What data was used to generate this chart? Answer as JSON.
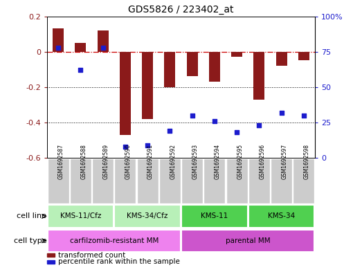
{
  "title": "GDS5826 / 223402_at",
  "samples": [
    "GSM1692587",
    "GSM1692588",
    "GSM1692589",
    "GSM1692590",
    "GSM1692591",
    "GSM1692592",
    "GSM1692593",
    "GSM1692594",
    "GSM1692595",
    "GSM1692596",
    "GSM1692597",
    "GSM1692598"
  ],
  "transformed_count": [
    0.13,
    0.05,
    0.12,
    -0.47,
    -0.38,
    -0.2,
    -0.14,
    -0.17,
    -0.03,
    -0.27,
    -0.08,
    -0.05
  ],
  "percentile_rank": [
    78,
    62,
    78,
    8,
    9,
    19,
    30,
    26,
    18,
    23,
    32,
    30
  ],
  "bar_color": "#8B1A1A",
  "dot_color": "#1C1CCD",
  "zero_line_color": "#CD0000",
  "grid_color": "#000000",
  "ylim_left": [
    -0.6,
    0.2
  ],
  "ylim_right": [
    0,
    100
  ],
  "yticks_left": [
    -0.6,
    -0.4,
    -0.2,
    0.0,
    0.2
  ],
  "yticks_right": [
    0,
    25,
    50,
    75,
    100
  ],
  "ytick_labels_right": [
    "0",
    "25",
    "50",
    "75",
    "100%"
  ],
  "cell_line_groups": [
    {
      "label": "KMS-11/Cfz",
      "start": 0,
      "end": 2,
      "color": "#B8F0B8"
    },
    {
      "label": "KMS-34/Cfz",
      "start": 3,
      "end": 5,
      "color": "#B8F0B8"
    },
    {
      "label": "KMS-11",
      "start": 6,
      "end": 8,
      "color": "#50D050"
    },
    {
      "label": "KMS-34",
      "start": 9,
      "end": 11,
      "color": "#50D050"
    }
  ],
  "cell_type_groups": [
    {
      "label": "carfilzomib-resistant MM",
      "start": 0,
      "end": 5,
      "color": "#EE82EE"
    },
    {
      "label": "parental MM",
      "start": 6,
      "end": 11,
      "color": "#CC55CC"
    }
  ],
  "sample_box_color": "#CCCCCC",
  "legend_items": [
    {
      "label": "transformed count",
      "color": "#8B1A1A"
    },
    {
      "label": "percentile rank within the sample",
      "color": "#1C1CCD"
    }
  ],
  "cell_line_label": "cell line",
  "cell_type_label": "cell type",
  "fig_width": 5.23,
  "fig_height": 3.93,
  "dpi": 100
}
